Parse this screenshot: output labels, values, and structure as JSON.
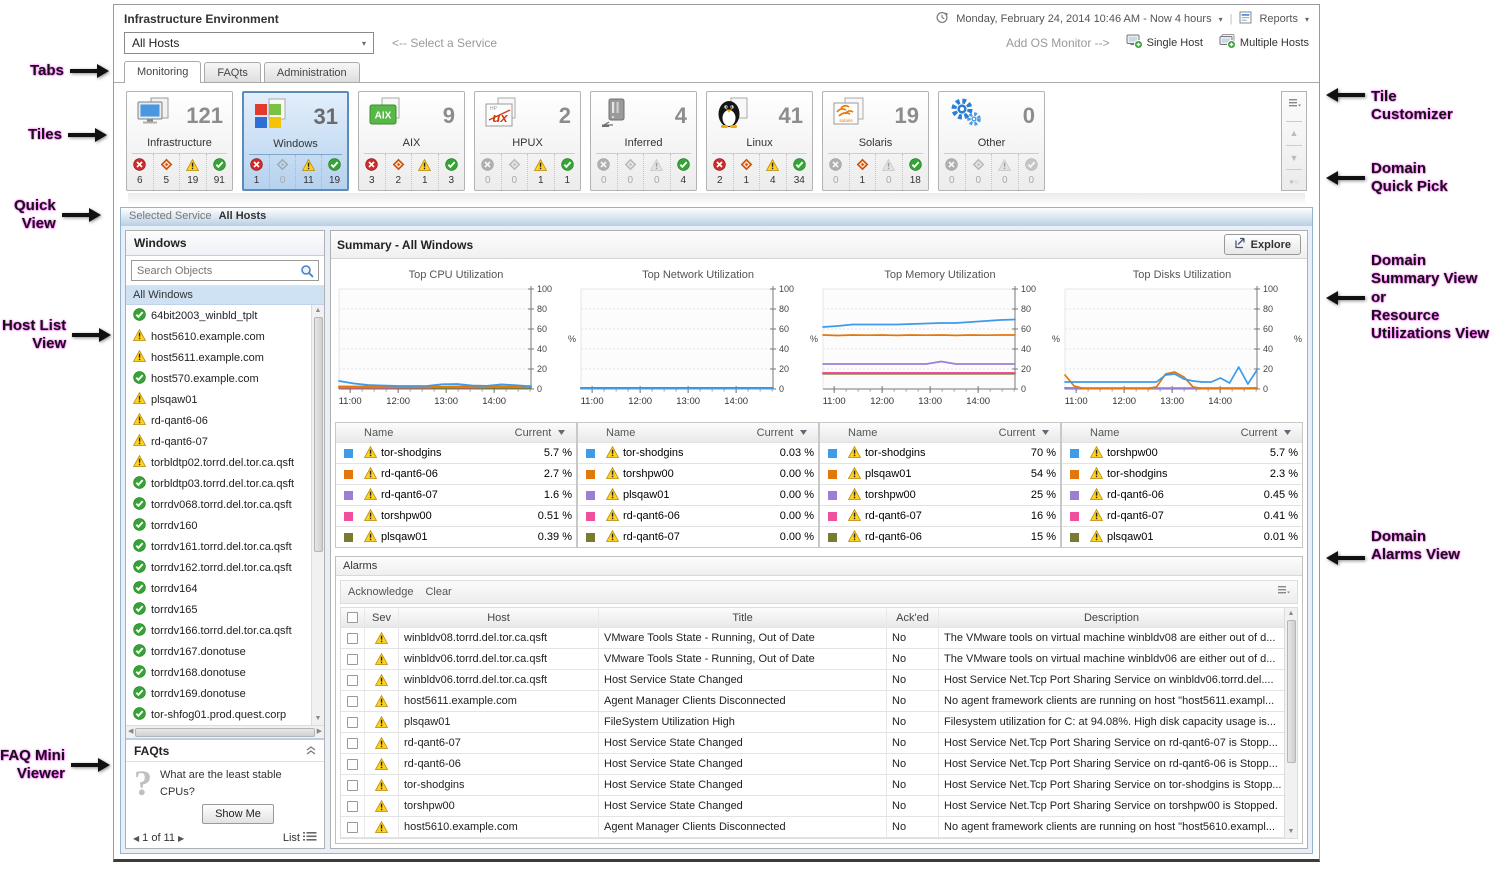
{
  "header": {
    "title": "Infrastructure Environment",
    "time_label": "Monday, February 24, 2014 10:46 AM - Now 4 hours",
    "reports_label": "Reports"
  },
  "toolbar": {
    "service_value": "All Hosts",
    "service_hint": "<-- Select a Service",
    "add_os_label": "Add OS Monitor -->",
    "single_host_label": "Single Host",
    "multiple_hosts_label": "Multiple Hosts"
  },
  "tabs": [
    {
      "label": "Monitoring",
      "active": true
    },
    {
      "label": "FAQts",
      "active": false
    },
    {
      "label": "Administration",
      "active": false
    }
  ],
  "tiles": {
    "status_order": [
      "fatal",
      "critical",
      "warning",
      "normal"
    ],
    "items": [
      {
        "label": "Infrastructure",
        "count": 121,
        "icon": "infrastructure-icon",
        "selected": false,
        "statuses": [
          6,
          5,
          19,
          91
        ]
      },
      {
        "label": "Windows",
        "count": 31,
        "icon": "windows-icon",
        "selected": true,
        "statuses": [
          1,
          0,
          11,
          19
        ]
      },
      {
        "label": "AIX",
        "count": 9,
        "icon": "aix-icon",
        "selected": false,
        "statuses": [
          3,
          2,
          1,
          3
        ]
      },
      {
        "label": "HPUX",
        "count": 2,
        "icon": "hpux-icon",
        "selected": false,
        "statuses": [
          0,
          0,
          1,
          1
        ]
      },
      {
        "label": "Inferred",
        "count": 4,
        "icon": "inferred-icon",
        "selected": false,
        "statuses": [
          0,
          0,
          0,
          4
        ]
      },
      {
        "label": "Linux",
        "count": 41,
        "icon": "linux-icon",
        "selected": false,
        "statuses": [
          2,
          1,
          4,
          34
        ]
      },
      {
        "label": "Solaris",
        "count": 19,
        "icon": "solaris-icon",
        "selected": false,
        "statuses": [
          0,
          1,
          0,
          18
        ]
      },
      {
        "label": "Other",
        "count": 0,
        "icon": "other-icon",
        "selected": false,
        "statuses": [
          0,
          0,
          0,
          0
        ]
      }
    ]
  },
  "quick_view": {
    "selected_service_label": "Selected Service",
    "selected_service_value": "All Hosts"
  },
  "host_panel": {
    "title": "Windows",
    "search_placeholder": "Search Objects",
    "group_label": "All Windows",
    "hosts": [
      {
        "name": "64bit2003_winbld_tplt",
        "status": "normal"
      },
      {
        "name": "host5610.example.com",
        "status": "warning"
      },
      {
        "name": "host5611.example.com",
        "status": "warning"
      },
      {
        "name": "host570.example.com",
        "status": "normal"
      },
      {
        "name": "plsqaw01",
        "status": "warning"
      },
      {
        "name": "rd-qant6-06",
        "status": "warning"
      },
      {
        "name": "rd-qant6-07",
        "status": "warning"
      },
      {
        "name": "torbldtp02.torrd.del.tor.ca.qsft",
        "status": "warning"
      },
      {
        "name": "torbldtp03.torrd.del.tor.ca.qsft",
        "status": "normal"
      },
      {
        "name": "torrdv068.torrd.del.tor.ca.qsft",
        "status": "normal"
      },
      {
        "name": "torrdv160",
        "status": "normal"
      },
      {
        "name": "torrdv161.torrd.del.tor.ca.qsft",
        "status": "normal"
      },
      {
        "name": "torrdv162.torrd.del.tor.ca.qsft",
        "status": "normal"
      },
      {
        "name": "torrdv164",
        "status": "normal"
      },
      {
        "name": "torrdv165",
        "status": "normal"
      },
      {
        "name": "torrdv166.torrd.del.tor.ca.qsft",
        "status": "normal"
      },
      {
        "name": "torrdv167.donotuse",
        "status": "normal"
      },
      {
        "name": "torrdv168.donotuse",
        "status": "normal"
      },
      {
        "name": "torrdv169.donotuse",
        "status": "normal"
      },
      {
        "name": "tor-shfog01.prod.quest.corp",
        "status": "normal"
      }
    ]
  },
  "faqts": {
    "title": "FAQts",
    "question": "What are the least stable CPUs?",
    "show_me_label": "Show Me",
    "page_label": "1 of 11",
    "list_label": "List"
  },
  "summary": {
    "title": "Summary - All Windows",
    "explore_label": "Explore"
  },
  "chart_data": [
    {
      "type": "line",
      "title": "Top CPU Utilization",
      "ylabel": "%",
      "ylim": [
        0,
        100
      ],
      "yticks": [
        0,
        20,
        40,
        60,
        80,
        100
      ],
      "x_labels": [
        "11:00",
        "12:00",
        "13:00",
        "14:00"
      ],
      "grid": true,
      "legend_position": "table-below",
      "series": [
        {
          "name": "tor-shodgins",
          "color": "#3d9be9",
          "values": [
            8,
            5.5,
            4,
            3.5,
            3,
            3,
            3.2,
            4.8,
            5,
            3.5,
            3.2,
            4.6,
            3.8,
            2.6
          ]
        },
        {
          "name": "rd-qant6-06",
          "color": "#e2780c",
          "values": [
            2.6,
            2.5,
            2.6,
            2.5,
            2.6,
            2.5,
            2.6,
            2.5,
            2.6,
            2.5,
            2.6,
            2.5,
            2.6,
            2.5
          ]
        },
        {
          "name": "rd-qant6-07",
          "color": "#9a7fd4",
          "values": [
            1.8,
            1.8,
            1.8,
            1.8,
            1.8,
            1.8,
            1.8,
            1.8,
            1.8,
            1.8,
            1.8,
            1.8,
            1.8,
            1.8
          ]
        },
        {
          "name": "torshpw00",
          "color": "#f0509b",
          "values": [
            1.4,
            1.4,
            1.5,
            1.4,
            1.5,
            1.6,
            1.5,
            2.2,
            1.6,
            1.5,
            2,
            2.4,
            1.8,
            3
          ]
        },
        {
          "name": "plsqaw01",
          "color": "#7a7a33",
          "values": [
            1,
            1,
            1,
            1,
            1,
            1,
            1,
            1,
            1,
            1,
            1,
            1,
            1,
            1
          ]
        }
      ],
      "legend_rows": [
        {
          "name": "tor-shodgins",
          "value": "5.7 %"
        },
        {
          "name": "rd-qant6-06",
          "value": "2.7 %"
        },
        {
          "name": "rd-qant6-07",
          "value": "1.6 %"
        },
        {
          "name": "torshpw00",
          "value": "0.51 %"
        },
        {
          "name": "plsqaw01",
          "value": "0.39 %"
        }
      ]
    },
    {
      "type": "line",
      "title": "Top Network Utilization",
      "ylabel": "%",
      "ylim": [
        0,
        100
      ],
      "yticks": [
        0,
        20,
        40,
        60,
        80,
        100
      ],
      "x_labels": [
        "11:00",
        "12:00",
        "13:00",
        "14:00"
      ],
      "grid": true,
      "legend_position": "table-below",
      "series": [
        {
          "name": "tor-shodgins",
          "color": "#3d9be9",
          "values": [
            0.9,
            0.9,
            0.9,
            0.9,
            0.9,
            0.9,
            0.9,
            0.9,
            0.9,
            0.9,
            0.9,
            0.9,
            0.9,
            0.9
          ]
        },
        {
          "name": "torshpw00",
          "color": "#e2780c",
          "values": [
            0.6,
            0.6,
            0.6,
            0.6,
            0.6,
            0.6,
            0.6,
            0.6,
            0.6,
            0.6,
            0.6,
            0.6,
            0.6,
            0.6
          ]
        },
        {
          "name": "plsqaw01",
          "color": "#9a7fd4",
          "values": [
            0.4,
            0.4,
            0.4,
            0.4,
            0.4,
            0.4,
            0.4,
            0.4,
            0.4,
            0.4,
            0.4,
            0.4,
            0.4,
            0.4
          ]
        },
        {
          "name": "rd-qant6-06",
          "color": "#f0509b",
          "values": [
            0.3,
            0.3,
            0.3,
            0.3,
            0.3,
            0.3,
            0.3,
            0.3,
            0.3,
            0.3,
            0.3,
            0.3,
            0.3,
            0.3
          ]
        },
        {
          "name": "rd-qant6-07",
          "color": "#7a7a33",
          "values": [
            1.2,
            1.2,
            1.2,
            1.2,
            1.2,
            1.2,
            1.2,
            1.2,
            1.2,
            1.2,
            1.2,
            1.2,
            1.2,
            1.2
          ]
        }
      ],
      "legend_rows": [
        {
          "name": "tor-shodgins",
          "value": "0.03 %"
        },
        {
          "name": "torshpw00",
          "value": "0.00 %"
        },
        {
          "name": "plsqaw01",
          "value": "0.00 %"
        },
        {
          "name": "rd-qant6-06",
          "value": "0.00 %"
        },
        {
          "name": "rd-qant6-07",
          "value": "0.00 %"
        }
      ]
    },
    {
      "type": "line",
      "title": "Top Memory Utilization",
      "ylabel": "%",
      "ylim": [
        0,
        100
      ],
      "yticks": [
        0,
        20,
        40,
        60,
        80,
        100
      ],
      "x_labels": [
        "11:00",
        "12:00",
        "13:00",
        "14:00"
      ],
      "grid": true,
      "legend_position": "table-below",
      "series": [
        {
          "name": "tor-shodgins",
          "color": "#3d9be9",
          "values": [
            62,
            63,
            64.5,
            64.5,
            64.5,
            64.5,
            65,
            65.5,
            66,
            66,
            67,
            68,
            69,
            69.5
          ]
        },
        {
          "name": "plsqaw01",
          "color": "#e2780c",
          "values": [
            54,
            53.5,
            54,
            53.8,
            54,
            53.6,
            54,
            53.8,
            54,
            53.6,
            54,
            53.8,
            54,
            54
          ]
        },
        {
          "name": "torshpw00",
          "color": "#9a7fd4",
          "values": [
            25,
            25,
            25,
            25,
            25,
            25,
            25,
            25,
            27.5,
            25,
            25,
            25,
            25,
            25
          ]
        },
        {
          "name": "rd-qant6-07",
          "color": "#f0509b",
          "values": [
            16.2,
            16.2,
            16.2,
            16.2,
            16.2,
            16.2,
            16.2,
            16.2,
            16.2,
            16.2,
            16.2,
            16.2,
            16.2,
            16.2
          ]
        },
        {
          "name": "rd-qant6-06",
          "color": "#7a7a33",
          "values": [
            15.2,
            15.2,
            15.2,
            15.2,
            15.2,
            15.2,
            15.2,
            15.2,
            15.2,
            15.2,
            15.2,
            15.2,
            15.2,
            15.2
          ]
        }
      ],
      "legend_rows": [
        {
          "name": "tor-shodgins",
          "value": "70 %"
        },
        {
          "name": "plsqaw01",
          "value": "54 %"
        },
        {
          "name": "torshpw00",
          "value": "25 %"
        },
        {
          "name": "rd-qant6-07",
          "value": "16 %"
        },
        {
          "name": "rd-qant6-06",
          "value": "15 %"
        }
      ]
    },
    {
      "type": "line",
      "title": "Top Disks Utilization",
      "ylabel": "%",
      "ylim": [
        0,
        100
      ],
      "yticks": [
        0,
        20,
        40,
        60,
        80,
        100
      ],
      "x_labels": [
        "11:00",
        "12:00",
        "13:00",
        "14:00"
      ],
      "grid": true,
      "legend_position": "table-below",
      "series": [
        {
          "name": "torshpw00",
          "color": "#3d9be9",
          "values": [
            7,
            7,
            7,
            7,
            7,
            7,
            7,
            7,
            7,
            7,
            7,
            14,
            15,
            10,
            8,
            7,
            7,
            11,
            6,
            22,
            5,
            19
          ]
        },
        {
          "name": "tor-shodgins",
          "color": "#e2780c",
          "values": [
            14,
            3,
            0.5,
            0.5,
            0.5,
            0.5,
            0.5,
            0.5,
            0.5,
            0.5,
            2,
            15,
            17,
            12,
            2,
            0.5,
            0.5,
            0.5,
            0.5,
            0.5,
            0.5,
            0.5
          ]
        },
        {
          "name": "rd-qant6-06",
          "color": "#9a7fd4",
          "values": [
            0.8,
            0.8,
            0.8,
            0.8,
            0.8,
            0.8,
            0.8,
            0.8,
            0.8,
            0.8,
            0.8,
            0.8,
            0.8,
            0.8,
            0.8,
            0.8,
            0.8,
            0.8,
            0.8,
            0.8,
            0.8,
            0.8
          ]
        },
        {
          "name": "rd-qant6-07",
          "color": "#f0509b",
          "values": [
            1.2,
            1,
            0.9,
            0.9,
            0.9,
            0.9,
            0.9,
            0.9,
            0.9,
            0.9,
            0.9,
            0.9,
            0.9,
            0.9,
            0.9,
            0.9,
            0.9,
            0.9,
            0.9,
            0.9,
            0.9,
            1.2
          ]
        },
        {
          "name": "plsqaw01",
          "color": "#7a7a33",
          "values": [
            0.5,
            0.5,
            0.5,
            0.5,
            0.5,
            0.5,
            0.5,
            0.5,
            0.5,
            0.5,
            0.5,
            0.5,
            0.5,
            0.5,
            0.5,
            0.5,
            0.5,
            0.5,
            0.5,
            0.5,
            0.5,
            0.5
          ]
        }
      ],
      "legend_rows": [
        {
          "name": "torshpw00",
          "value": "5.7 %"
        },
        {
          "name": "tor-shodgins",
          "value": "2.3 %"
        },
        {
          "name": "rd-qant6-06",
          "value": "0.45 %"
        },
        {
          "name": "rd-qant6-07",
          "value": "0.41 %"
        },
        {
          "name": "plsqaw01",
          "value": "0.01 %"
        }
      ]
    }
  ],
  "legend_headers": {
    "name": "Name",
    "current": "Current"
  },
  "alarms": {
    "title": "Alarms",
    "ack_label": "Acknowledge",
    "clear_label": "Clear",
    "columns": [
      "Sev",
      "Host",
      "Title",
      "Ack'ed",
      "Description"
    ],
    "rows": [
      {
        "sev": "warning",
        "host": "winbldv08.torrd.del.tor.ca.qsft",
        "title": "VMware Tools State - Running, Out of Date",
        "acked": "No",
        "description": "The VMware tools on virtual machine winbldv08 are either out of d..."
      },
      {
        "sev": "warning",
        "host": "winbldv06.torrd.del.tor.ca.qsft",
        "title": "VMware Tools State - Running, Out of Date",
        "acked": "No",
        "description": "The VMware tools on virtual machine winbldv06 are either out of d..."
      },
      {
        "sev": "warning",
        "host": "winbldv06.torrd.del.tor.ca.qsft",
        "title": "Host Service State Changed",
        "acked": "No",
        "description": "Host Service Net.Tcp Port Sharing Service on winbldv06.torrd.del...."
      },
      {
        "sev": "warning",
        "host": "host5611.example.com",
        "title": "Agent Manager Clients Disconnected",
        "acked": "No",
        "description": "No agent framework clients are running on host \"host5611.exampl..."
      },
      {
        "sev": "warning",
        "host": "plsqaw01",
        "title": "FileSystem Utilization High",
        "acked": "No",
        "description": "Filesystem utilization for C: at 94.08%. High disk capacity usage is..."
      },
      {
        "sev": "warning",
        "host": "rd-qant6-07",
        "title": "Host Service State Changed",
        "acked": "No",
        "description": "Host Service Net.Tcp Port Sharing Service on rd-qant6-07 is Stopp..."
      },
      {
        "sev": "warning",
        "host": "rd-qant6-06",
        "title": "Host Service State Changed",
        "acked": "No",
        "description": "Host Service Net.Tcp Port Sharing Service on rd-qant6-06 is Stopp..."
      },
      {
        "sev": "warning",
        "host": "tor-shodgins",
        "title": "Host Service State Changed",
        "acked": "No",
        "description": "Host Service Net.Tcp Port Sharing Service on tor-shodgins is Stopp..."
      },
      {
        "sev": "warning",
        "host": "torshpw00",
        "title": "Host Service State Changed",
        "acked": "No",
        "description": "Host Service Net.Tcp Port Sharing Service on torshpw00 is Stopped."
      },
      {
        "sev": "warning",
        "host": "host5610.example.com",
        "title": "Agent Manager Clients Disconnected",
        "acked": "No",
        "description": "No agent framework clients are running on host \"host5610.exampl..."
      }
    ]
  },
  "annotations": {
    "left": [
      {
        "id": "tabs",
        "label": "Tabs"
      },
      {
        "id": "tiles",
        "label": "Tiles"
      },
      {
        "id": "quick-view",
        "label": "Quick\nView"
      },
      {
        "id": "host-list-view",
        "label": "Host List\nView"
      },
      {
        "id": "faq-mini-viewer",
        "label": "FAQ Mini\nViewer"
      }
    ],
    "right": [
      {
        "id": "tile-customizer",
        "label": "Tile\nCustomizer"
      },
      {
        "id": "domain-quick-pick",
        "label": "Domain\nQuick Pick"
      },
      {
        "id": "domain-summary-view",
        "label": "Domain\nSummary View\nor\nResource\nUtilizations View"
      },
      {
        "id": "domain-alarms-view",
        "label": "Domain\nAlarms View"
      }
    ]
  }
}
